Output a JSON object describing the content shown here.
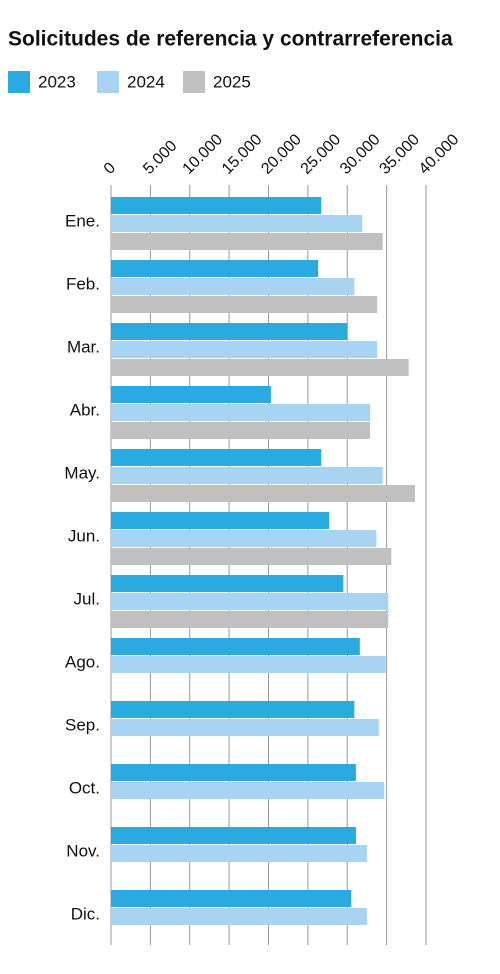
{
  "chart_data": {
    "type": "bar",
    "orientation": "horizontal",
    "title": "Solicitudes de referencia y contrarreferencia",
    "categories": [
      "Ene.",
      "Feb.",
      "Mar.",
      "Abr.",
      "May.",
      "Jun.",
      "Jul.",
      "Ago.",
      "Sep.",
      "Oct.",
      "Nov.",
      "Dic."
    ],
    "series": [
      {
        "name": "2023",
        "color": "#29abe2",
        "values": [
          26700,
          26300,
          30000,
          20300,
          26700,
          27700,
          29500,
          31600,
          30900,
          31100,
          31100,
          30500
        ]
      },
      {
        "name": "2024",
        "color": "#a6d4f2",
        "values": [
          31900,
          30900,
          33800,
          32900,
          34500,
          33700,
          35200,
          34900,
          34000,
          34700,
          32500,
          32500
        ]
      },
      {
        "name": "2025",
        "color": "#c0c0c0",
        "values": [
          34500,
          33800,
          37800,
          32900,
          38600,
          35600,
          35200,
          null,
          null,
          null,
          null,
          null
        ]
      }
    ],
    "xlim": [
      0,
      40000
    ],
    "xticks": [
      0,
      {
        "value": 5000,
        "label": "5.000"
      },
      {
        "value": 10000,
        "label": "10.000"
      },
      {
        "value": 15000,
        "label": "15.000"
      },
      {
        "value": 20000,
        "label": "20.000"
      },
      {
        "value": 25000,
        "label": "25.000"
      },
      {
        "value": 30000,
        "label": "30.000"
      },
      {
        "value": 35000,
        "label": "35.000"
      },
      {
        "value": 40000,
        "label": "40.000"
      }
    ],
    "grid": true,
    "legend": "top"
  }
}
